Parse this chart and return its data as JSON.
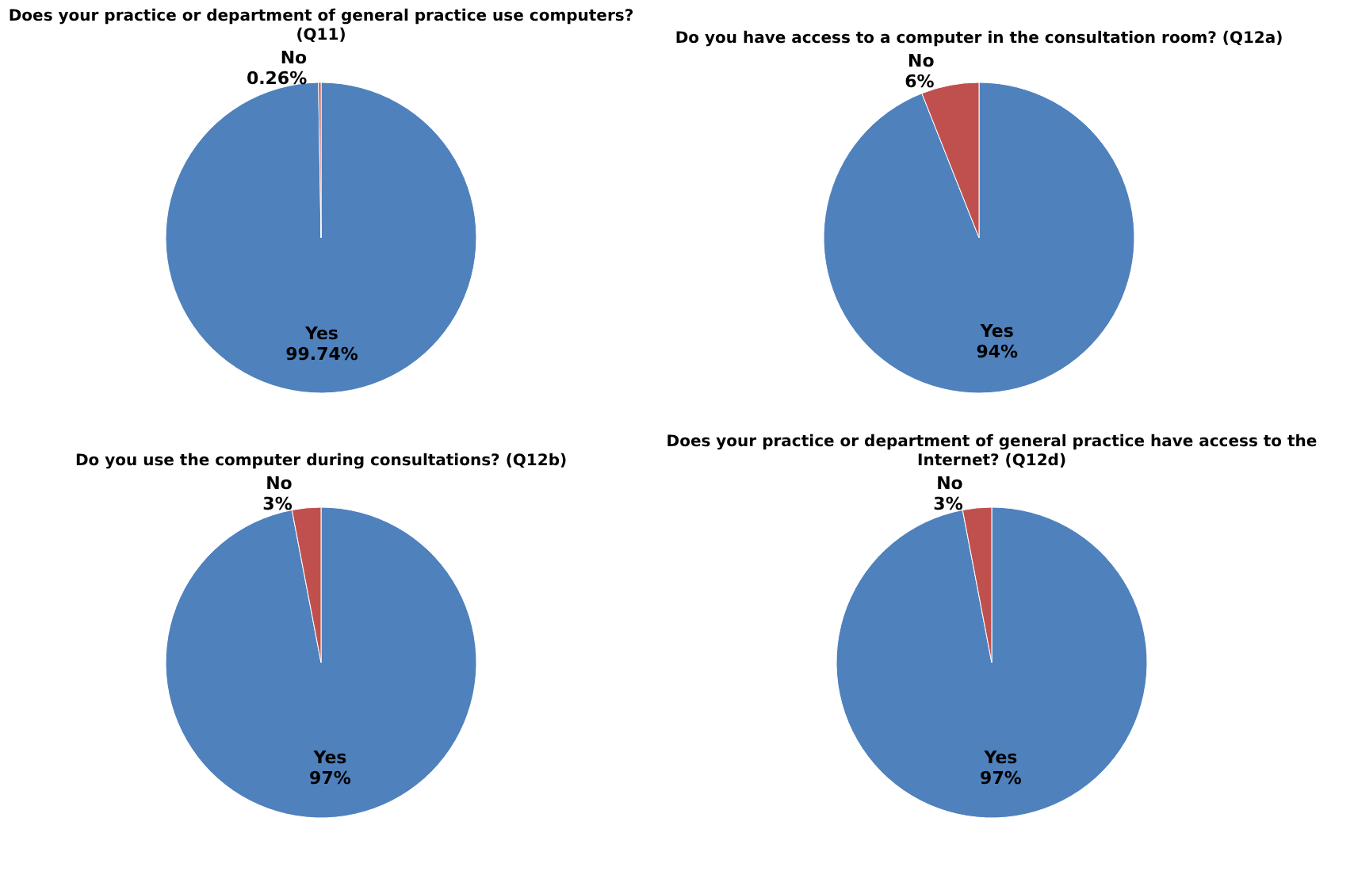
{
  "chart_data": [
    {
      "type": "pie",
      "title": "Does your practice or department of general practice use computers? (Q11)",
      "categories": [
        "Yes",
        "No"
      ],
      "values": [
        99.74,
        0.26
      ],
      "value_labels": [
        "99.74%",
        "0.26%"
      ],
      "colors": [
        "#4f81bd",
        "#c0504d"
      ],
      "legend": false
    },
    {
      "type": "pie",
      "title": "Do you have access to a computer in the consultation room? (Q12a)",
      "categories": [
        "Yes",
        "No"
      ],
      "values": [
        94,
        6
      ],
      "value_labels": [
        "94%",
        "6%"
      ],
      "colors": [
        "#4f81bd",
        "#c0504d"
      ],
      "legend": false
    },
    {
      "type": "pie",
      "title": "Do you use the computer during consultations? (Q12b)",
      "categories": [
        "Yes",
        "No"
      ],
      "values": [
        97,
        3
      ],
      "value_labels": [
        "97%",
        "3%"
      ],
      "colors": [
        "#4f81bd",
        "#c0504d"
      ],
      "legend": false
    },
    {
      "type": "pie",
      "title": "Does your practice or department of general practice have access to the Internet? (Q12d)",
      "categories": [
        "Yes",
        "No"
      ],
      "values": [
        97,
        3
      ],
      "value_labels": [
        "97%",
        "3%"
      ],
      "colors": [
        "#4f81bd",
        "#c0504d"
      ],
      "legend": false
    }
  ]
}
